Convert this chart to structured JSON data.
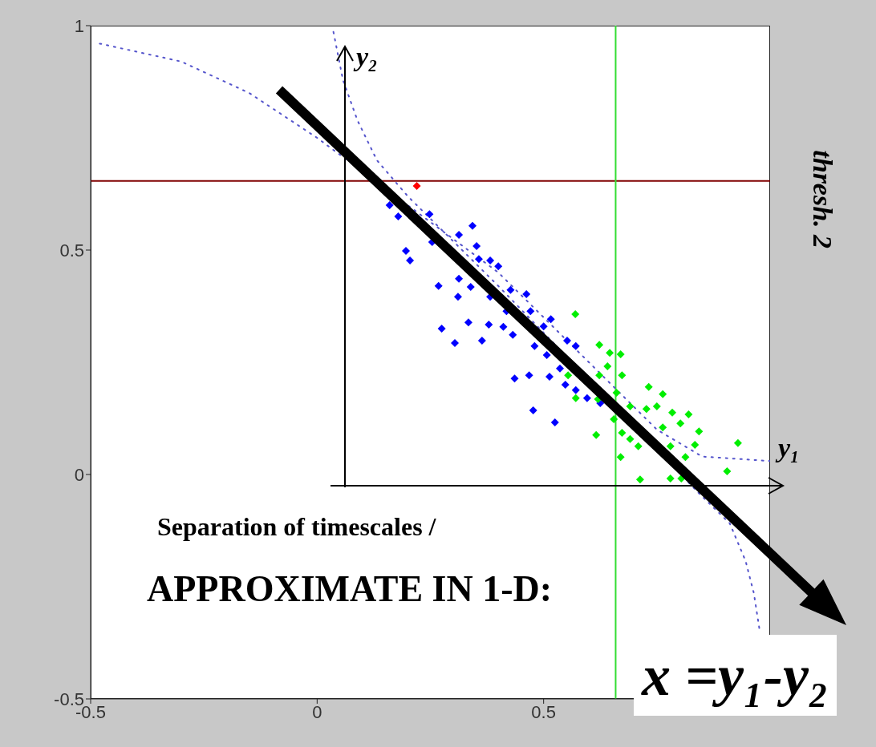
{
  "chart_data": {
    "type": "scatter",
    "xlim": [
      -0.5,
      1
    ],
    "ylim": [
      -0.5,
      1
    ],
    "xticks": [
      -0.5,
      0,
      0.5
    ],
    "yticks": [
      -0.5,
      0,
      0.5,
      1
    ],
    "marker": "diamond",
    "annotations": [
      "y₂",
      "y₁",
      "thresh. 2",
      "Separation of timescales /",
      "APPROXIMATE IN 1-D:",
      "x =y₁-y₂"
    ],
    "ref_lines": [
      {
        "axis": "y",
        "value": 0.654,
        "label": null,
        "color": "#800000",
        "line_style": "solid"
      },
      {
        "axis": "x",
        "value": 0.659,
        "label": null,
        "color": "#33dd33",
        "line_style": "solid"
      }
    ],
    "series": [
      {
        "type": "line",
        "color": "#5555cc",
        "marker": "none",
        "line_style": "dotted",
        "x": [
          -0.48,
          -0.3,
          -0.15,
          0,
          0.4,
          0.6,
          0.75,
          0.85,
          1.0
        ],
        "values": [
          0.96,
          0.92,
          0.85,
          0.75,
          0.45,
          0.25,
          0.1,
          0.04,
          0.03
        ]
      },
      {
        "type": "line",
        "color": "#5555cc",
        "marker": "none",
        "line_style": "dotted",
        "x": [
          0.036,
          0.057,
          0.089,
          0.132,
          0.2,
          0.4,
          0.846,
          0.911,
          0.946,
          0.964,
          0.977
        ],
        "values": [
          0.986,
          0.879,
          0.789,
          0.7,
          0.62,
          0.42,
          -0.045,
          -0.109,
          -0.193,
          -0.264,
          -0.348
        ]
      },
      {
        "color": "#0000ff",
        "x": [
          0.16,
          0.179,
          0.248,
          0.343,
          0.254,
          0.313,
          0.352,
          0.196,
          0.205,
          0.357,
          0.382,
          0.4,
          0.268,
          0.313,
          0.339,
          0.311,
          0.427,
          0.462,
          0.382,
          0.471,
          0.418,
          0.275,
          0.334,
          0.379,
          0.411,
          0.432,
          0.304,
          0.364,
          0.516,
          0.5,
          0.48,
          0.552,
          0.571,
          0.507,
          0.536,
          0.513,
          0.468,
          0.436,
          0.548,
          0.571,
          0.596,
          0.477,
          0.525,
          0.625
        ],
        "values": [
          0.6,
          0.575,
          0.58,
          0.554,
          0.518,
          0.534,
          0.509,
          0.498,
          0.477,
          0.48,
          0.477,
          0.464,
          0.42,
          0.436,
          0.418,
          0.396,
          0.411,
          0.402,
          0.396,
          0.364,
          0.364,
          0.325,
          0.339,
          0.334,
          0.329,
          0.311,
          0.293,
          0.298,
          0.346,
          0.33,
          0.286,
          0.298,
          0.286,
          0.266,
          0.236,
          0.218,
          0.221,
          0.214,
          0.2,
          0.188,
          0.17,
          0.143,
          0.116,
          0.159
        ]
      },
      {
        "color": "#00ee00",
        "x": [
          0.57,
          0.623,
          0.646,
          0.67,
          0.641,
          0.673,
          0.623,
          0.554,
          0.571,
          0.62,
          0.661,
          0.691,
          0.732,
          0.763,
          0.727,
          0.75,
          0.784,
          0.82,
          0.802,
          0.763,
          0.843,
          0.673,
          0.691,
          0.655,
          0.616,
          0.709,
          0.78,
          0.834,
          0.813,
          0.67,
          0.929,
          0.905,
          0.713,
          0.78,
          0.804
        ],
        "values": [
          0.357,
          0.289,
          0.271,
          0.268,
          0.241,
          0.221,
          0.221,
          0.221,
          0.17,
          0.168,
          0.182,
          0.152,
          0.195,
          0.179,
          0.146,
          0.152,
          0.138,
          0.134,
          0.114,
          0.105,
          0.096,
          0.093,
          0.079,
          0.123,
          0.088,
          0.063,
          0.063,
          0.066,
          0.039,
          0.039,
          0.07,
          0.007,
          -0.011,
          -0.009,
          -0.009
        ]
      },
      {
        "color": "#ff0000",
        "x": [
          0.22
        ],
        "values": [
          0.643
        ]
      }
    ]
  }
}
